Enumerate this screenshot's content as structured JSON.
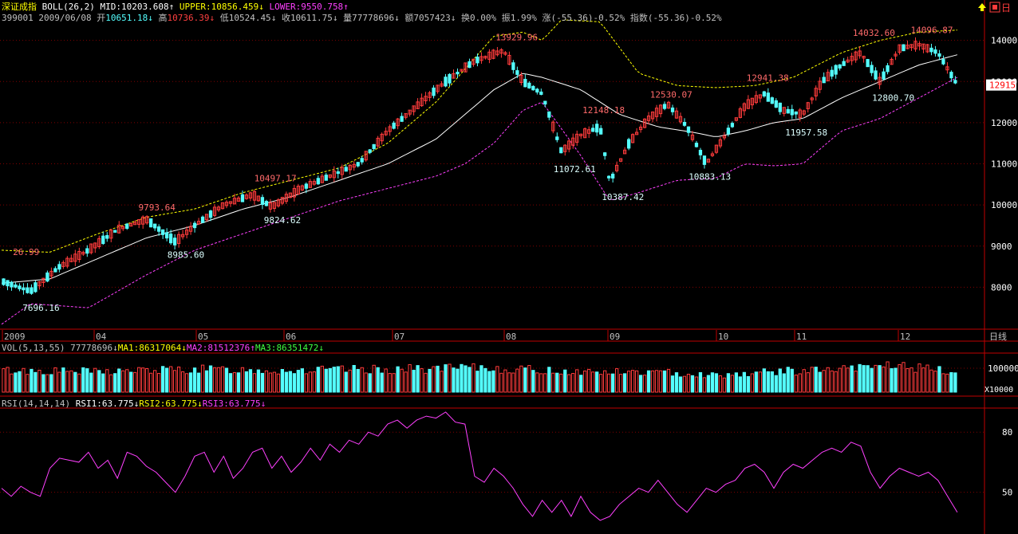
{
  "header": {
    "index_name": "深证成指",
    "boll_label": "BOLL(26,2)",
    "mid_label": "MID:",
    "mid_value": "10203.608",
    "upper_label": "UPPER:",
    "upper_value": "10856.459",
    "lower_label": "LOWER:",
    "lower_value": "9550.758",
    "code": "399001",
    "date": "2009/06/08",
    "open_label": "开",
    "open_value": "10651.18",
    "high_label": "高",
    "high_value": "10736.39",
    "low_label": "低",
    "low_value": "10524.45",
    "close_label": "收",
    "close_value": "10611.75",
    "volume_label": "量",
    "volume_value": "77778696",
    "amount_label": "额",
    "amount_value": "7057423",
    "turnover_label": "换",
    "turnover_value": "0.00%",
    "amplitude_label": "振",
    "amplitude_value": "1.99%",
    "change_label": "涨",
    "change_value": "(-55.36)-0.52%",
    "index_label": "指数",
    "index_value": "(-55.36)-0.52%",
    "period_label": "日线",
    "day_button": "日",
    "current_price_tag": "12915"
  },
  "volume_header": {
    "title": "VOL(5,13,55)",
    "value": "77778696",
    "ma1_label": "MA1:",
    "ma1_value": "86317064",
    "ma2_label": "MA2:",
    "ma2_value": "81512376",
    "ma3_label": "MA3:",
    "ma3_value": "86351472",
    "unit": "X10000"
  },
  "rsi_header": {
    "title": "RSI(14,14,14)",
    "rsi1_label": "RSI1:",
    "rsi1_value": "63.775",
    "rsi2_label": "RSI2:",
    "rsi2_value": "63.775",
    "rsi3_label": "RSI3:",
    "rsi3_value": "63.775"
  },
  "colors": {
    "up": "#ff3c3c",
    "down": "#54ffff",
    "mid": "#ffffff",
    "upper": "#ffff00",
    "lower": "#ff40ff",
    "grid": "#800000",
    "axis_text": "#ffffff",
    "rsi": "#ff40ff"
  },
  "chart_data": [
    {
      "type": "candlestick",
      "x_ticks": [
        "2009",
        "04",
        "05",
        "06",
        "07",
        "08",
        "09",
        "10",
        "11",
        "12"
      ],
      "y_ticks": [
        8000,
        9000,
        10000,
        11000,
        12000,
        13000,
        14000
      ],
      "ylim": [
        7000,
        14400
      ],
      "annotations": [
        {
          "x": 0.02,
          "value": "26.99",
          "kind": "high"
        },
        {
          "x": 0.03,
          "value": "7696.16",
          "kind": "low"
        },
        {
          "x": 0.15,
          "value": "9793.64",
          "kind": "high"
        },
        {
          "x": 0.18,
          "value": "8985.60",
          "kind": "low"
        },
        {
          "x": 0.27,
          "value": "10497.17",
          "kind": "high"
        },
        {
          "x": 0.28,
          "value": "9824.62",
          "kind": "low"
        },
        {
          "x": 0.52,
          "value": "13929.96",
          "kind": "high"
        },
        {
          "x": 0.58,
          "value": "11072.61",
          "kind": "low"
        },
        {
          "x": 0.61,
          "value": "12148.18",
          "kind": "high"
        },
        {
          "x": 0.63,
          "value": "10387.42",
          "kind": "low"
        },
        {
          "x": 0.68,
          "value": "12530.07",
          "kind": "high"
        },
        {
          "x": 0.72,
          "value": "10883.13",
          "kind": "low"
        },
        {
          "x": 0.78,
          "value": "12941.38",
          "kind": "high"
        },
        {
          "x": 0.82,
          "value": "11957.58",
          "kind": "low"
        },
        {
          "x": 0.89,
          "value": "14032.60",
          "kind": "high"
        },
        {
          "x": 0.91,
          "value": "12800.70",
          "kind": "low"
        },
        {
          "x": 0.95,
          "value": "14096.87",
          "kind": "high"
        }
      ],
      "close_path": [
        [
          0,
          8150
        ],
        [
          0.03,
          7900
        ],
        [
          0.06,
          8500
        ],
        [
          0.09,
          8900
        ],
        [
          0.12,
          9400
        ],
        [
          0.15,
          9650
        ],
        [
          0.18,
          9100
        ],
        [
          0.2,
          9500
        ],
        [
          0.23,
          10000
        ],
        [
          0.26,
          10250
        ],
        [
          0.28,
          9950
        ],
        [
          0.31,
          10400
        ],
        [
          0.34,
          10700
        ],
        [
          0.37,
          11000
        ],
        [
          0.4,
          11800
        ],
        [
          0.43,
          12400
        ],
        [
          0.46,
          13000
        ],
        [
          0.49,
          13500
        ],
        [
          0.52,
          13750
        ],
        [
          0.54,
          13000
        ],
        [
          0.56,
          12700
        ],
        [
          0.58,
          11300
        ],
        [
          0.6,
          11700
        ],
        [
          0.62,
          11900
        ],
        [
          0.63,
          10550
        ],
        [
          0.65,
          11500
        ],
        [
          0.67,
          12100
        ],
        [
          0.69,
          12450
        ],
        [
          0.71,
          11900
        ],
        [
          0.73,
          11000
        ],
        [
          0.75,
          11700
        ],
        [
          0.77,
          12400
        ],
        [
          0.79,
          12700
        ],
        [
          0.81,
          12300
        ],
        [
          0.83,
          12200
        ],
        [
          0.85,
          13000
        ],
        [
          0.87,
          13400
        ],
        [
          0.89,
          13700
        ],
        [
          0.91,
          13000
        ],
        [
          0.93,
          13800
        ],
        [
          0.95,
          13900
        ],
        [
          0.97,
          13700
        ],
        [
          0.99,
          12915
        ]
      ],
      "mid_path": [
        [
          0,
          8100
        ],
        [
          0.05,
          8200
        ],
        [
          0.1,
          8700
        ],
        [
          0.15,
          9200
        ],
        [
          0.2,
          9500
        ],
        [
          0.25,
          9900
        ],
        [
          0.3,
          10200
        ],
        [
          0.35,
          10600
        ],
        [
          0.4,
          11000
        ],
        [
          0.45,
          11600
        ],
        [
          0.48,
          12200
        ],
        [
          0.51,
          12800
        ],
        [
          0.54,
          13200
        ],
        [
          0.56,
          13100
        ],
        [
          0.6,
          12800
        ],
        [
          0.64,
          12200
        ],
        [
          0.68,
          11900
        ],
        [
          0.72,
          11750
        ],
        [
          0.74,
          11650
        ],
        [
          0.77,
          11800
        ],
        [
          0.8,
          12000
        ],
        [
          0.83,
          12100
        ],
        [
          0.87,
          12600
        ],
        [
          0.91,
          13000
        ],
        [
          0.95,
          13400
        ],
        [
          0.99,
          13650
        ]
      ],
      "upper_path": [
        [
          0,
          8900
        ],
        [
          0.05,
          8850
        ],
        [
          0.1,
          9300
        ],
        [
          0.15,
          9700
        ],
        [
          0.2,
          9900
        ],
        [
          0.25,
          10300
        ],
        [
          0.3,
          10600
        ],
        [
          0.35,
          10900
        ],
        [
          0.4,
          11500
        ],
        [
          0.45,
          12500
        ],
        [
          0.48,
          13300
        ],
        [
          0.51,
          14100
        ],
        [
          0.54,
          14200
        ],
        [
          0.56,
          14000
        ],
        [
          0.58,
          14500
        ],
        [
          0.62,
          14450
        ],
        [
          0.66,
          13200
        ],
        [
          0.7,
          12900
        ],
        [
          0.74,
          12850
        ],
        [
          0.78,
          12900
        ],
        [
          0.82,
          13100
        ],
        [
          0.87,
          13700
        ],
        [
          0.91,
          14000
        ],
        [
          0.95,
          14200
        ],
        [
          0.99,
          14250
        ]
      ],
      "lower_path": [
        [
          0,
          7100
        ],
        [
          0.03,
          7600
        ],
        [
          0.09,
          7500
        ],
        [
          0.15,
          8300
        ],
        [
          0.2,
          8900
        ],
        [
          0.25,
          9300
        ],
        [
          0.3,
          9700
        ],
        [
          0.35,
          10100
        ],
        [
          0.4,
          10400
        ],
        [
          0.45,
          10700
        ],
        [
          0.48,
          11000
        ],
        [
          0.51,
          11500
        ],
        [
          0.54,
          12300
        ],
        [
          0.56,
          12500
        ],
        [
          0.6,
          11200
        ],
        [
          0.63,
          10100
        ],
        [
          0.66,
          10300
        ],
        [
          0.7,
          10600
        ],
        [
          0.74,
          10650
        ],
        [
          0.77,
          11000
        ],
        [
          0.8,
          10950
        ],
        [
          0.83,
          11000
        ],
        [
          0.87,
          11800
        ],
        [
          0.91,
          12100
        ],
        [
          0.95,
          12600
        ],
        [
          0.99,
          13100
        ]
      ]
    },
    {
      "type": "bar",
      "title": "VOL(5,13,55)",
      "y_ticks": [
        100000
      ],
      "ylim": [
        0,
        160000
      ],
      "volume_profile": [
        [
          0,
          90000
        ],
        [
          0.1,
          85000
        ],
        [
          0.2,
          95000
        ],
        [
          0.3,
          90000
        ],
        [
          0.4,
          95000
        ],
        [
          0.5,
          100000
        ],
        [
          0.6,
          85000
        ],
        [
          0.7,
          80000
        ],
        [
          0.74,
          70000
        ],
        [
          0.8,
          85000
        ],
        [
          0.88,
          95000
        ],
        [
          0.92,
          115000
        ],
        [
          0.96,
          95000
        ],
        [
          0.99,
          80000
        ]
      ]
    },
    {
      "type": "line",
      "title": "RSI(14,14,14)",
      "y_ticks": [
        50,
        80
      ],
      "ylim": [
        30,
        92
      ],
      "rsi_path": [
        [
          0,
          52
        ],
        [
          0.01,
          48
        ],
        [
          0.02,
          53
        ],
        [
          0.03,
          50
        ],
        [
          0.04,
          48
        ],
        [
          0.05,
          62
        ],
        [
          0.06,
          67
        ],
        [
          0.08,
          65
        ],
        [
          0.09,
          70
        ],
        [
          0.1,
          62
        ],
        [
          0.11,
          66
        ],
        [
          0.12,
          57
        ],
        [
          0.13,
          70
        ],
        [
          0.14,
          68
        ],
        [
          0.15,
          63
        ],
        [
          0.16,
          60
        ],
        [
          0.17,
          55
        ],
        [
          0.18,
          50
        ],
        [
          0.19,
          58
        ],
        [
          0.2,
          68
        ],
        [
          0.21,
          70
        ],
        [
          0.22,
          60
        ],
        [
          0.23,
          68
        ],
        [
          0.24,
          57
        ],
        [
          0.25,
          62
        ],
        [
          0.26,
          70
        ],
        [
          0.27,
          72
        ],
        [
          0.28,
          62
        ],
        [
          0.29,
          68
        ],
        [
          0.3,
          60
        ],
        [
          0.31,
          65
        ],
        [
          0.32,
          72
        ],
        [
          0.33,
          66
        ],
        [
          0.34,
          74
        ],
        [
          0.35,
          70
        ],
        [
          0.36,
          76
        ],
        [
          0.37,
          74
        ],
        [
          0.38,
          80
        ],
        [
          0.39,
          78
        ],
        [
          0.4,
          84
        ],
        [
          0.41,
          86
        ],
        [
          0.42,
          82
        ],
        [
          0.43,
          86
        ],
        [
          0.44,
          88
        ],
        [
          0.45,
          87
        ],
        [
          0.46,
          90
        ],
        [
          0.47,
          85
        ],
        [
          0.48,
          84
        ],
        [
          0.49,
          58
        ],
        [
          0.5,
          55
        ],
        [
          0.51,
          62
        ],
        [
          0.52,
          58
        ],
        [
          0.53,
          52
        ],
        [
          0.54,
          44
        ],
        [
          0.55,
          38
        ],
        [
          0.56,
          46
        ],
        [
          0.57,
          40
        ],
        [
          0.58,
          46
        ],
        [
          0.59,
          38
        ],
        [
          0.6,
          48
        ],
        [
          0.61,
          40
        ],
        [
          0.62,
          36
        ],
        [
          0.63,
          38
        ],
        [
          0.64,
          44
        ],
        [
          0.65,
          48
        ],
        [
          0.66,
          52
        ],
        [
          0.67,
          50
        ],
        [
          0.68,
          56
        ],
        [
          0.69,
          50
        ],
        [
          0.7,
          44
        ],
        [
          0.71,
          40
        ],
        [
          0.72,
          46
        ],
        [
          0.73,
          52
        ],
        [
          0.74,
          50
        ],
        [
          0.75,
          54
        ],
        [
          0.76,
          56
        ],
        [
          0.77,
          62
        ],
        [
          0.78,
          64
        ],
        [
          0.79,
          60
        ],
        [
          0.8,
          52
        ],
        [
          0.81,
          60
        ],
        [
          0.82,
          64
        ],
        [
          0.83,
          62
        ],
        [
          0.84,
          66
        ],
        [
          0.85,
          70
        ],
        [
          0.86,
          72
        ],
        [
          0.87,
          70
        ],
        [
          0.88,
          75
        ],
        [
          0.89,
          73
        ],
        [
          0.9,
          60
        ],
        [
          0.91,
          52
        ],
        [
          0.92,
          58
        ],
        [
          0.93,
          62
        ],
        [
          0.94,
          60
        ],
        [
          0.95,
          58
        ],
        [
          0.96,
          60
        ],
        [
          0.97,
          56
        ],
        [
          0.98,
          48
        ],
        [
          0.99,
          40
        ]
      ]
    }
  ]
}
